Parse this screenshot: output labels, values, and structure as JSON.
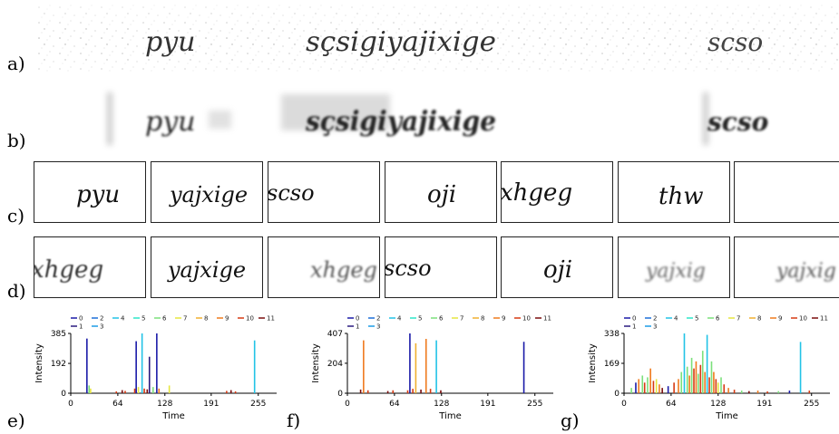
{
  "panel_labels": {
    "a": "a)",
    "b": "b)",
    "c": "c)",
    "d": "d)",
    "e": "e)",
    "f": "f)",
    "g": "g)"
  },
  "row_a": {
    "words": [
      "pyu",
      "sçsigiyajixige",
      "scso"
    ]
  },
  "row_b": {
    "words": [
      "pyu",
      "sçsigiyajixige",
      "scso"
    ]
  },
  "row_c": {
    "crops": [
      "pyu",
      "yajxige",
      "scso",
      "oji",
      "xhgeg",
      "thw",
      ""
    ]
  },
  "row_d": {
    "crops": [
      "xhgeg",
      "yajxige",
      "xhgeg",
      "scso",
      "oji",
      "yajxig",
      "yajxig"
    ]
  },
  "legend": {
    "items": [
      {
        "label": "0",
        "color": "#1a1aa8"
      },
      {
        "label": "2",
        "color": "#1e6fd9"
      },
      {
        "label": "4",
        "color": "#22c3e6"
      },
      {
        "label": "5",
        "color": "#2ee6c8"
      },
      {
        "label": "6",
        "color": "#7be07b"
      },
      {
        "label": "7",
        "color": "#e6e640"
      },
      {
        "label": "8",
        "color": "#f0b030"
      },
      {
        "label": "9",
        "color": "#ef7a1e"
      },
      {
        "label": "10",
        "color": "#d63a12"
      },
      {
        "label": "11",
        "color": "#7a0d0d"
      },
      {
        "label": "1",
        "color": "#2a1a80"
      },
      {
        "label": "3",
        "color": "#1c9ce6"
      }
    ]
  },
  "chart_data": [
    {
      "type": "bar",
      "xlabel": "Time",
      "ylabel": "Intensity",
      "xticks": [
        "0",
        "64",
        "128",
        "191",
        "255"
      ],
      "yticks": [
        "0",
        "192",
        "385"
      ],
      "xlim": [
        0,
        280
      ],
      "ylim": [
        0,
        385
      ],
      "bars": [
        {
          "x": 22,
          "y": 352,
          "series": "0"
        },
        {
          "x": 25,
          "y": 50,
          "series": "6"
        },
        {
          "x": 27,
          "y": 30,
          "series": "7"
        },
        {
          "x": 62,
          "y": 12,
          "series": "10"
        },
        {
          "x": 70,
          "y": 20,
          "series": "11"
        },
        {
          "x": 74,
          "y": 15,
          "series": "10"
        },
        {
          "x": 87,
          "y": 30,
          "series": "10"
        },
        {
          "x": 89,
          "y": 335,
          "series": "0"
        },
        {
          "x": 92,
          "y": 40,
          "series": "7"
        },
        {
          "x": 97,
          "y": 385,
          "series": "4"
        },
        {
          "x": 100,
          "y": 30,
          "series": "10"
        },
        {
          "x": 104,
          "y": 25,
          "series": "11"
        },
        {
          "x": 107,
          "y": 235,
          "series": "1"
        },
        {
          "x": 112,
          "y": 40,
          "series": "6"
        },
        {
          "x": 117,
          "y": 385,
          "series": "0"
        },
        {
          "x": 120,
          "y": 30,
          "series": "9"
        },
        {
          "x": 134,
          "y": 50,
          "series": "7"
        },
        {
          "x": 212,
          "y": 15,
          "series": "10"
        },
        {
          "x": 218,
          "y": 20,
          "series": "11"
        },
        {
          "x": 224,
          "y": 12,
          "series": "10"
        },
        {
          "x": 250,
          "y": 340,
          "series": "4"
        }
      ]
    },
    {
      "type": "bar",
      "xlabel": "Time",
      "ylabel": "Intensity",
      "xticks": [
        "0",
        "64",
        "128",
        "191",
        "255"
      ],
      "yticks": [
        "0",
        "204",
        "407"
      ],
      "xlim": [
        0,
        280
      ],
      "ylim": [
        0,
        407
      ],
      "bars": [
        {
          "x": 18,
          "y": 25,
          "series": "11"
        },
        {
          "x": 22,
          "y": 360,
          "series": "9"
        },
        {
          "x": 28,
          "y": 20,
          "series": "10"
        },
        {
          "x": 55,
          "y": 15,
          "series": "11"
        },
        {
          "x": 62,
          "y": 20,
          "series": "10"
        },
        {
          "x": 82,
          "y": 20,
          "series": "10"
        },
        {
          "x": 85,
          "y": 407,
          "series": "0"
        },
        {
          "x": 89,
          "y": 30,
          "series": "10"
        },
        {
          "x": 93,
          "y": 340,
          "series": "8"
        },
        {
          "x": 100,
          "y": 25,
          "series": "11"
        },
        {
          "x": 107,
          "y": 370,
          "series": "9"
        },
        {
          "x": 113,
          "y": 30,
          "series": "10"
        },
        {
          "x": 121,
          "y": 360,
          "series": "4"
        },
        {
          "x": 127,
          "y": 20,
          "series": "11"
        },
        {
          "x": 240,
          "y": 350,
          "series": "0"
        }
      ]
    },
    {
      "type": "bar",
      "xlabel": "Time",
      "ylabel": "Intensity",
      "xticks": [
        "0",
        "64",
        "128",
        "191",
        "255"
      ],
      "yticks": [
        "0",
        "169",
        "338"
      ],
      "xlim": [
        0,
        280
      ],
      "ylim": [
        0,
        338
      ],
      "bars": [
        {
          "x": 10,
          "y": 30,
          "series": "6"
        },
        {
          "x": 16,
          "y": 60,
          "series": "0"
        },
        {
          "x": 20,
          "y": 80,
          "series": "9"
        },
        {
          "x": 25,
          "y": 100,
          "series": "6"
        },
        {
          "x": 28,
          "y": 60,
          "series": "10"
        },
        {
          "x": 32,
          "y": 90,
          "series": "6"
        },
        {
          "x": 36,
          "y": 140,
          "series": "9"
        },
        {
          "x": 40,
          "y": 70,
          "series": "10"
        },
        {
          "x": 44,
          "y": 80,
          "series": "7"
        },
        {
          "x": 48,
          "y": 50,
          "series": "9"
        },
        {
          "x": 52,
          "y": 30,
          "series": "11"
        },
        {
          "x": 60,
          "y": 40,
          "series": "0"
        },
        {
          "x": 68,
          "y": 60,
          "series": "10"
        },
        {
          "x": 74,
          "y": 80,
          "series": "9"
        },
        {
          "x": 78,
          "y": 120,
          "series": "6"
        },
        {
          "x": 82,
          "y": 338,
          "series": "4"
        },
        {
          "x": 86,
          "y": 150,
          "series": "6"
        },
        {
          "x": 89,
          "y": 100,
          "series": "9"
        },
        {
          "x": 92,
          "y": 200,
          "series": "6"
        },
        {
          "x": 95,
          "y": 140,
          "series": "10"
        },
        {
          "x": 98,
          "y": 180,
          "series": "9"
        },
        {
          "x": 101,
          "y": 110,
          "series": "6"
        },
        {
          "x": 104,
          "y": 160,
          "series": "10"
        },
        {
          "x": 107,
          "y": 240,
          "series": "6"
        },
        {
          "x": 110,
          "y": 120,
          "series": "9"
        },
        {
          "x": 113,
          "y": 330,
          "series": "4"
        },
        {
          "x": 116,
          "y": 90,
          "series": "10"
        },
        {
          "x": 119,
          "y": 180,
          "series": "6"
        },
        {
          "x": 122,
          "y": 120,
          "series": "9"
        },
        {
          "x": 125,
          "y": 80,
          "series": "10"
        },
        {
          "x": 128,
          "y": 60,
          "series": "7"
        },
        {
          "x": 132,
          "y": 90,
          "series": "6"
        },
        {
          "x": 136,
          "y": 50,
          "series": "10"
        },
        {
          "x": 142,
          "y": 30,
          "series": "9"
        },
        {
          "x": 150,
          "y": 20,
          "series": "10"
        },
        {
          "x": 160,
          "y": 15,
          "series": "6"
        },
        {
          "x": 170,
          "y": 12,
          "series": "11"
        },
        {
          "x": 182,
          "y": 15,
          "series": "9"
        },
        {
          "x": 195,
          "y": 10,
          "series": "10"
        },
        {
          "x": 210,
          "y": 12,
          "series": "6"
        },
        {
          "x": 225,
          "y": 15,
          "series": "0"
        },
        {
          "x": 240,
          "y": 290,
          "series": "4"
        },
        {
          "x": 252,
          "y": 15,
          "series": "10"
        }
      ]
    }
  ]
}
